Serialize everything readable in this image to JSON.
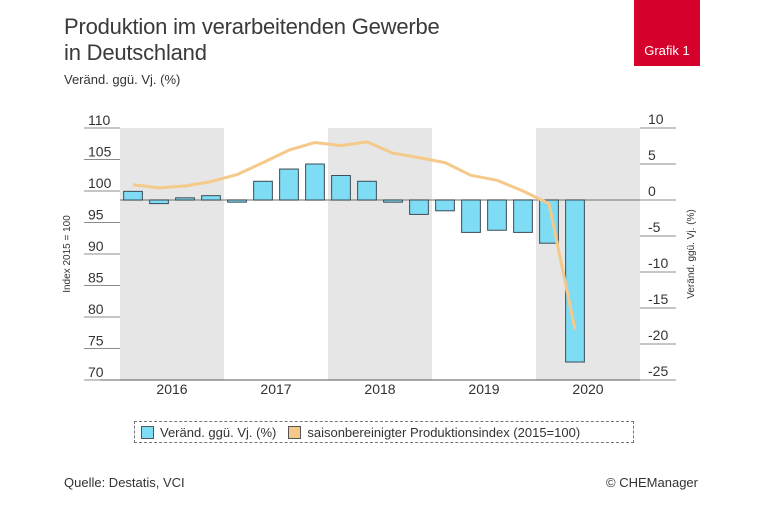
{
  "header": {
    "title_line1": "Produktion im verarbeitenden Gewerbe",
    "title_line2": "in Deutschland",
    "subtitle": "Veränd. ggü. Vj. (%)",
    "badge": "Grafik 1"
  },
  "footer": {
    "source": "Quelle: Destatis, VCI",
    "copyright": "© CHEManager"
  },
  "colors": {
    "bar": "#7fdcf5",
    "line": "#f5c98a",
    "band": "#e6e6e6",
    "badge": "#d6002c"
  },
  "chart_data": {
    "type": "bar",
    "years": [
      "2016",
      "2017",
      "2018",
      "2019",
      "2020"
    ],
    "shaded_years": [
      "2016",
      "2018",
      "2020"
    ],
    "quarters": [
      "2016 Q1",
      "2016 Q2",
      "2016 Q3",
      "2016 Q4",
      "2017 Q1",
      "2017 Q2",
      "2017 Q3",
      "2017 Q4",
      "2018 Q1",
      "2018 Q2",
      "2018 Q3",
      "2018 Q4",
      "2019 Q1",
      "2019 Q2",
      "2019 Q3",
      "2019 Q4",
      "2020 Q1",
      "2020 Q2"
    ],
    "left_axis": {
      "label": "Index 2015 = 100",
      "ticks": [
        "110",
        "105",
        "100",
        "95",
        "90",
        "85",
        "80",
        "75",
        "70"
      ],
      "ylim": [
        70,
        110
      ]
    },
    "right_axis": {
      "label": "Veränd. ggü. Vj. (%)",
      "ticks": [
        "10",
        "5",
        "0",
        "-5",
        "-10",
        "-15",
        "-20",
        "-25"
      ],
      "ylim": [
        -25,
        10
      ]
    },
    "series": [
      {
        "name": "Veränd. ggü. Vj. (%)",
        "axis": "right",
        "kind": "bar",
        "values": [
          1.2,
          -0.5,
          0.3,
          0.6,
          -0.3,
          2.6,
          4.3,
          5.0,
          3.4,
          2.6,
          -0.3,
          -2.0,
          -1.5,
          -4.5,
          -4.2,
          -4.5,
          -6.0,
          -22.5
        ]
      },
      {
        "name": "saisonbereinigter Produktionsindex (2015=100)",
        "axis": "left",
        "kind": "line",
        "values": [
          101.0,
          100.5,
          100.8,
          101.5,
          102.6,
          104.5,
          106.5,
          107.7,
          107.2,
          107.8,
          106.0,
          105.3,
          104.5,
          102.5,
          101.7,
          100.0,
          98.0,
          78.0
        ]
      }
    ]
  }
}
